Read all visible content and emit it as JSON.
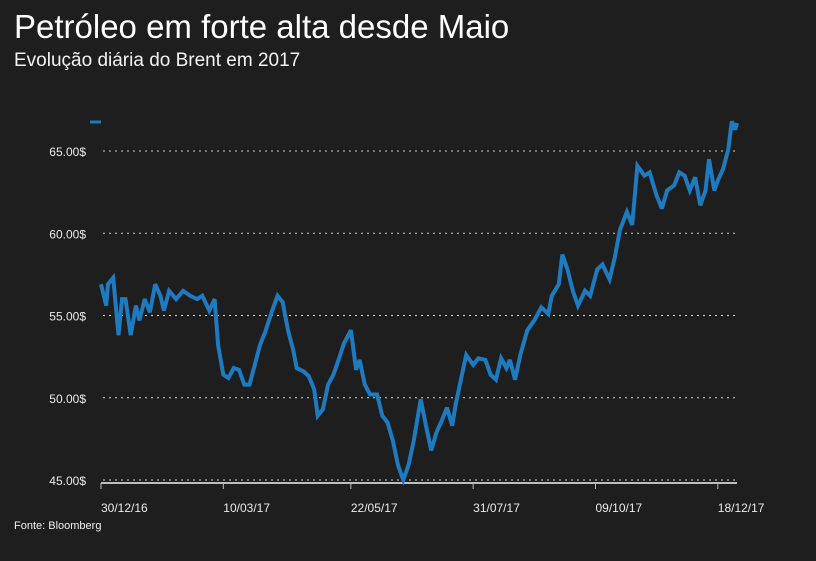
{
  "chart_data": {
    "type": "line",
    "title": "Petróleo em forte alta desde Maio",
    "subtitle": "Evolução diária do Brent em 2017",
    "source": "Fonte: Bloomberg",
    "xlabel": "",
    "ylabel": "",
    "ylim": [
      45,
      67
    ],
    "xlim": [
      "2016-12-30",
      "2017-12-29"
    ],
    "grid": true,
    "legend": "top-left",
    "colors": {
      "line": "#1f7bbf",
      "background": "#1e1e1e",
      "grid": "#d0d0d0"
    },
    "y_ticks": [
      {
        "value": 45,
        "label": "45.00$"
      },
      {
        "value": 50,
        "label": "50.00$"
      },
      {
        "value": 55,
        "label": "55.00$"
      },
      {
        "value": 60,
        "label": "60.00$"
      },
      {
        "value": 65,
        "label": "65.00$"
      }
    ],
    "x_ticks": [
      {
        "value": "2016-12-30",
        "label": "30/12/16"
      },
      {
        "value": "2017-03-10",
        "label": "10/03/17"
      },
      {
        "value": "2017-05-22",
        "label": "22/05/17"
      },
      {
        "value": "2017-07-31",
        "label": "31/07/17"
      },
      {
        "value": "2017-10-09",
        "label": "09/10/17"
      },
      {
        "value": "2017-12-18",
        "label": "18/12/17"
      }
    ],
    "series": [
      {
        "x": [
          "2016-12-30",
          "2017-01-02",
          "2017-01-03",
          "2017-01-06",
          "2017-01-09",
          "2017-01-11",
          "2017-01-13",
          "2017-01-16",
          "2017-01-19",
          "2017-01-21",
          "2017-01-24",
          "2017-01-27",
          "2017-01-30",
          "2017-02-02",
          "2017-02-04",
          "2017-02-07",
          "2017-02-11",
          "2017-02-15",
          "2017-02-19",
          "2017-02-23",
          "2017-02-26",
          "2017-03-02",
          "2017-03-05",
          "2017-03-07",
          "2017-03-10",
          "2017-03-13",
          "2017-03-16",
          "2017-03-19",
          "2017-03-22",
          "2017-03-25",
          "2017-03-28",
          "2017-03-31",
          "2017-04-03",
          "2017-04-07",
          "2017-04-10",
          "2017-04-13",
          "2017-04-16",
          "2017-04-19",
          "2017-04-21",
          "2017-04-25",
          "2017-04-28",
          "2017-05-01",
          "2017-05-03",
          "2017-05-06",
          "2017-05-09",
          "2017-05-12",
          "2017-05-15",
          "2017-05-18",
          "2017-05-22",
          "2017-05-25",
          "2017-05-27",
          "2017-05-30",
          "2017-06-02",
          "2017-06-06",
          "2017-06-09",
          "2017-06-12",
          "2017-06-15",
          "2017-06-18",
          "2017-06-21",
          "2017-06-24",
          "2017-06-27",
          "2017-07-01",
          "2017-07-04",
          "2017-07-07",
          "2017-07-10",
          "2017-07-13",
          "2017-07-16",
          "2017-07-19",
          "2017-07-21",
          "2017-07-24",
          "2017-07-27",
          "2017-07-31",
          "2017-08-03",
          "2017-08-07",
          "2017-08-10",
          "2017-08-13",
          "2017-08-16",
          "2017-08-19",
          "2017-08-21",
          "2017-08-24",
          "2017-08-27",
          "2017-08-31",
          "2017-09-04",
          "2017-09-08",
          "2017-09-12",
          "2017-09-14",
          "2017-09-18",
          "2017-09-20",
          "2017-09-23",
          "2017-09-26",
          "2017-09-29",
          "2017-10-03",
          "2017-10-06",
          "2017-10-10",
          "2017-10-13",
          "2017-10-17",
          "2017-10-20",
          "2017-10-23",
          "2017-10-27",
          "2017-10-30",
          "2017-11-02",
          "2017-11-06",
          "2017-11-09",
          "2017-11-13",
          "2017-11-16",
          "2017-11-19",
          "2017-11-23",
          "2017-11-26",
          "2017-11-29",
          "2017-12-02",
          "2017-12-05",
          "2017-12-08",
          "2017-12-11",
          "2017-12-13",
          "2017-12-16",
          "2017-12-18",
          "2017-12-21",
          "2017-12-24",
          "2017-12-26",
          "2017-12-28",
          "2017-12-29"
        ],
        "values": [
          56.9,
          55.6,
          56.9,
          57.3,
          53.8,
          56.0,
          56.0,
          53.8,
          55.6,
          54.7,
          56.0,
          55.2,
          56.9,
          56.2,
          55.3,
          56.5,
          56.0,
          56.5,
          56.2,
          56.0,
          56.2,
          55.3,
          56.0,
          53.2,
          51.4,
          51.2,
          51.8,
          51.7,
          50.8,
          50.8,
          52.0,
          53.2,
          54.0,
          55.3,
          56.2,
          55.8,
          54.1,
          52.9,
          51.8,
          51.6,
          51.3,
          50.5,
          48.9,
          49.3,
          50.8,
          51.4,
          52.3,
          53.3,
          54.1,
          51.7,
          52.3,
          50.8,
          50.2,
          50.2,
          48.9,
          48.5,
          47.4,
          45.9,
          45.0,
          45.9,
          47.4,
          49.9,
          48.3,
          46.8,
          47.9,
          48.6,
          49.4,
          48.3,
          49.6,
          51.1,
          52.6,
          52.0,
          52.4,
          52.3,
          51.4,
          51.1,
          52.4,
          51.8,
          52.3,
          51.1,
          52.6,
          54.1,
          54.7,
          55.5,
          55.1,
          56.2,
          56.9,
          58.7,
          57.8,
          56.5,
          55.6,
          56.5,
          56.2,
          57.8,
          58.1,
          57.2,
          58.5,
          60.2,
          61.3,
          60.5,
          64.1,
          63.5,
          63.7,
          62.3,
          61.5,
          62.6,
          62.9,
          63.7,
          63.5,
          62.6,
          63.4,
          61.7,
          62.6,
          64.5,
          62.6,
          63.2,
          63.9,
          65.1,
          66.8,
          66.3,
          66.7
        ]
      }
    ]
  }
}
